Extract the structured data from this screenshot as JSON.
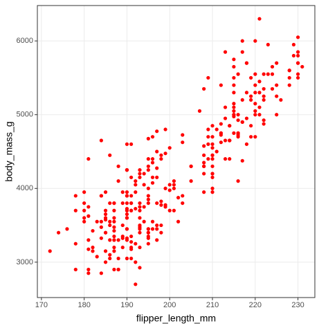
{
  "chart_data": {
    "type": "scatter",
    "x_label": "flipper_length_mm",
    "y_label": "body_mass_g",
    "color": "#ff0000",
    "grid": true,
    "xlim": [
      169.05,
      233.95
    ],
    "ylim": [
      2520,
      6480
    ],
    "xticks": [
      170,
      180,
      190,
      200,
      210,
      220,
      230
    ],
    "yticks": [
      3000,
      4000,
      5000,
      6000
    ],
    "x": [
      181,
      186,
      195,
      193,
      190,
      181,
      195,
      193,
      190,
      186,
      180,
      182,
      191,
      198,
      185,
      195,
      197,
      184,
      194,
      174,
      180,
      189,
      185,
      180,
      187,
      183,
      187,
      172,
      180,
      178,
      178,
      188,
      184,
      195,
      196,
      190,
      180,
      181,
      184,
      182,
      195,
      186,
      196,
      185,
      190,
      182,
      190,
      191,
      186,
      188,
      190,
      200,
      187,
      191,
      186,
      193,
      181,
      194,
      185,
      195,
      185,
      192,
      184,
      192,
      195,
      188,
      190,
      198,
      190,
      190,
      196,
      197,
      190,
      195,
      191,
      184,
      187,
      195,
      189,
      196,
      187,
      193,
      191,
      194,
      190,
      189,
      189,
      190,
      202,
      205,
      185,
      186,
      187,
      208,
      190,
      196,
      178,
      192,
      192,
      203,
      183,
      190,
      193,
      184,
      199,
      190,
      181,
      197,
      198,
      191,
      193,
      197,
      191,
      196,
      188,
      199,
      189,
      189,
      187,
      198,
      176,
      202,
      186,
      199,
      191,
      195,
      191,
      210,
      190,
      197,
      193,
      199,
      187,
      190,
      191,
      200,
      185,
      193,
      193,
      187,
      188,
      190,
      192,
      185,
      190,
      184,
      195,
      193,
      187,
      201,
      192,
      196,
      193,
      188,
      197,
      198,
      178,
      195,
      198,
      193,
      194,
      185,
      201,
      190,
      201,
      197,
      181,
      190,
      195,
      181,
      191,
      187,
      193,
      195,
      197,
      200,
      200,
      191,
      205,
      187,
      201,
      187,
      203,
      195,
      199,
      210,
      192,
      205,
      210,
      203,
      211,
      230,
      210,
      218,
      215,
      210,
      211,
      219,
      209,
      215,
      214,
      216,
      214,
      213,
      210,
      217,
      210,
      221,
      209,
      222,
      218,
      215,
      213,
      215,
      215,
      215,
      216,
      215,
      210,
      220,
      222,
      209,
      207,
      230,
      220,
      220,
      213,
      219,
      208,
      208,
      208,
      225,
      210,
      216,
      222,
      217,
      210,
      225,
      213,
      215,
      210,
      220,
      210,
      225,
      217,
      220,
      208,
      220,
      208,
      224,
      208,
      221,
      214,
      231,
      219,
      230,
      214,
      229,
      220,
      223,
      216,
      221,
      221,
      217,
      216,
      230,
      209,
      220,
      215,
      223,
      212,
      221,
      212,
      224,
      212,
      228,
      218,
      218,
      212,
      230,
      218,
      228,
      212,
      224,
      214,
      226,
      216,
      222,
      203,
      225,
      219,
      228,
      215,
      228,
      216,
      215,
      210,
      219,
      208,
      209,
      216,
      229,
      213,
      230,
      217,
      230,
      217,
      222,
      214,
      215,
      222,
      212
    ],
    "y": [
      3750,
      3800,
      3250,
      3450,
      3650,
      3625,
      4675,
      3475,
      4250,
      3300,
      3700,
      3200,
      3800,
      4400,
      3700,
      3450,
      4500,
      3325,
      4200,
      3400,
      3600,
      3800,
      3950,
      3800,
      3800,
      3550,
      3200,
      3150,
      3950,
      3250,
      3900,
      3300,
      3900,
      3325,
      4150,
      3950,
      3550,
      3300,
      4650,
      3150,
      3900,
      3100,
      4400,
      3000,
      4600,
      3425,
      3450,
      4150,
      3500,
      4300,
      3450,
      4050,
      2900,
      3700,
      3550,
      3800,
      2850,
      3750,
      3150,
      4400,
      3600,
      4050,
      2850,
      3950,
      3350,
      4100,
      3050,
      4450,
      3600,
      3900,
      3550,
      4150,
      3700,
      4250,
      3700,
      3900,
      3550,
      4000,
      3200,
      4700,
      3800,
      4200,
      3350,
      3550,
      3800,
      3500,
      3950,
      3600,
      3550,
      4300,
      3400,
      4450,
      3300,
      4300,
      3700,
      4350,
      2900,
      4100,
      3725,
      4725,
      3075,
      4250,
      2925,
      3550,
      3750,
      3900,
      3175,
      4775,
      3825,
      4600,
      3200,
      4275,
      3900,
      4075,
      2900,
      3775,
      3350,
      3325,
      3150,
      3500,
      3450,
      3875,
      3050,
      4000,
      3275,
      4300,
      3050,
      4000,
      3325,
      3500,
      3500,
      4475,
      3425,
      3900,
      3175,
      3975,
      3400,
      4250,
      3400,
      3475,
      3050,
      3725,
      3000,
      3650,
      4250,
      3475,
      3450,
      3750,
      3700,
      4000,
      2700,
      3450,
      3600,
      2900,
      3300,
      3400,
      3700,
      3800,
      3775,
      3700,
      4050,
      3575,
      4050,
      3300,
      3700,
      3450,
      4400,
      3600,
      3400,
      2900,
      3800,
      3300,
      4150,
      3400,
      3800,
      3700,
      4550,
      3200,
      4300,
      3350,
      4100,
      3600,
      3900,
      3850,
      4800,
      4450,
      3250,
      4100,
      3950,
      3800,
      4500,
      5700,
      4450,
      5700,
      5400,
      4550,
      4800,
      5200,
      4400,
      5150,
      4650,
      5550,
      4650,
      5850,
      4200,
      5850,
      4150,
      6300,
      4800,
      5350,
      5700,
      5000,
      4400,
      5050,
      5000,
      5100,
      4100,
      5650,
      4600,
      5550,
      5250,
      4700,
      5050,
      6050,
      5150,
      5400,
      4950,
      5250,
      4350,
      5350,
      3950,
      5700,
      4300,
      4750,
      5550,
      4900,
      4200,
      5400,
      5100,
      5300,
      4850,
      5300,
      4400,
      5000,
      4900,
      5050,
      4300,
      5000,
      4450,
      5550,
      4200,
      5300,
      4400,
      5650,
      4700,
      5700,
      4650,
      5800,
      4700,
      5550,
      4750,
      5000,
      5100,
      5200,
      4700,
      5800,
      4600,
      6000,
      4750,
      5950,
      4625,
      5450,
      4725,
      5350,
      4750,
      5600,
      4600,
      5300,
      4875,
      5550,
      4950,
      5400,
      4750,
      5650,
      4850,
      5200,
      4925,
      4875,
      4625,
      5250,
      4850,
      5600,
      4975,
      5500,
      4725,
      5500,
      4700,
      5500,
      4575,
      5500,
      5000,
      5950,
      4650,
      5500,
      4375,
      5850,
      6000,
      4925,
      4850,
      5750,
      5200,
      5400
    ]
  }
}
